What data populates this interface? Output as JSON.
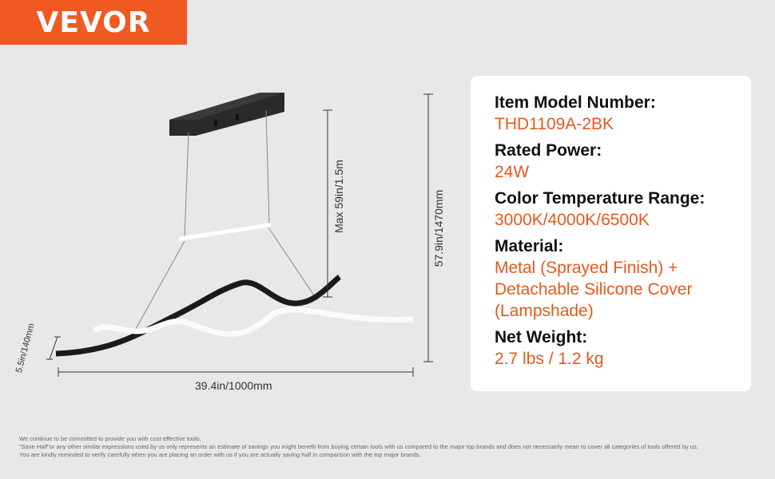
{
  "brand": {
    "logo": "VEVOR",
    "color": "#f05a22"
  },
  "dimensions": {
    "width": "39.4in/1000mm",
    "height": "57.9in/1470mm",
    "max_cord": "Max 59in/1.5m",
    "depth": "5.5in/140mm"
  },
  "specs": [
    {
      "label": "Item Model Number:",
      "value": "THD1109A-2BK"
    },
    {
      "label": "Rated Power:",
      "value": "24W"
    },
    {
      "label": "Color Temperature Range:",
      "value": "3000K/4000K/6500K"
    },
    {
      "label": "Material:",
      "value": "Metal (Sprayed Finish) + Detachable Silicone Cover (Lampshade)"
    },
    {
      "label": "Net Weight:",
      "value": "2.7 lbs / 1.2 kg"
    }
  ],
  "footer": [
    "We continue to be committed to provide you with cost-effective tools.",
    "\"Save Half\"or any other similar expressions used by us only represents an estimate of savings you might benefit from buying certain tools with us compared to the major top brands and does not necessarily mean to cover all categories of tools offered by us.",
    "You are kindly reminded to verify carefully when you are placing an order with us if you are actually saving half in comparison with the top major brands."
  ]
}
